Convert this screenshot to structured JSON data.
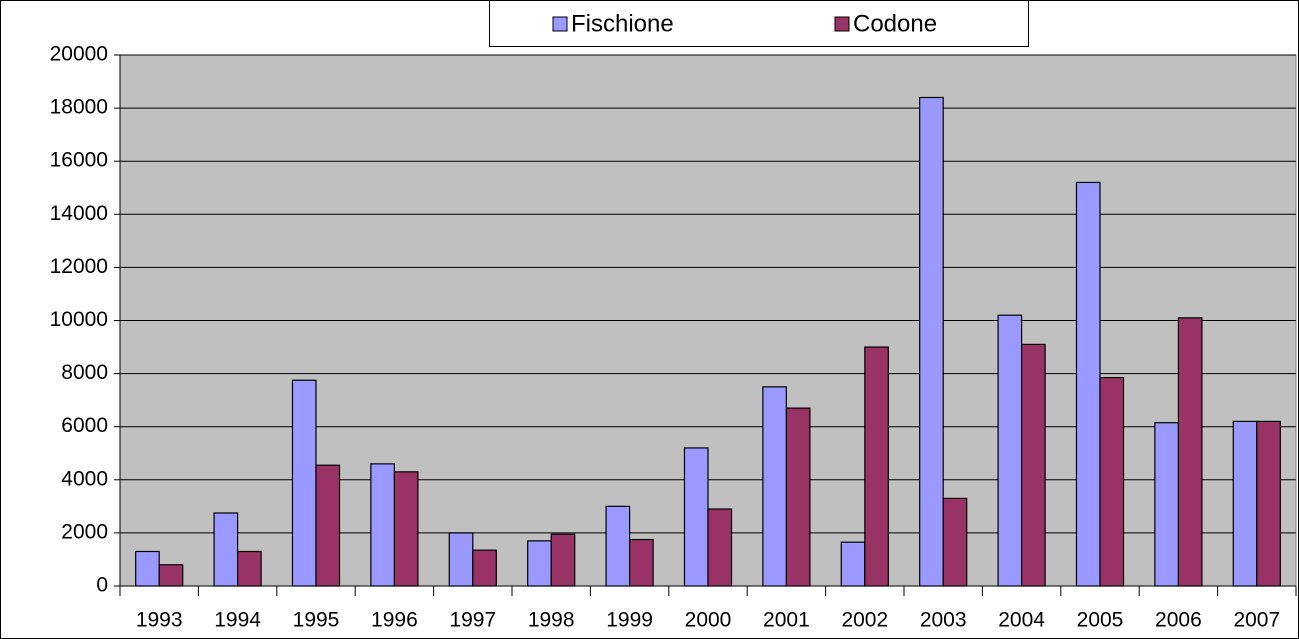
{
  "chart_data": {
    "type": "bar",
    "categories": [
      "1993",
      "1994",
      "1995",
      "1996",
      "1997",
      "1998",
      "1999",
      "2000",
      "2001",
      "2002",
      "2003",
      "2004",
      "2005",
      "2006",
      "2007"
    ],
    "series": [
      {
        "name": "Fischione",
        "color": "#9999ff",
        "values": [
          1300,
          2750,
          7750,
          4600,
          2000,
          1700,
          3000,
          5200,
          7500,
          1650,
          18400,
          10200,
          15200,
          6150,
          6200
        ]
      },
      {
        "name": "Codone",
        "color": "#993366",
        "values": [
          800,
          1300,
          4550,
          4300,
          1350,
          1950,
          1750,
          2900,
          6700,
          9000,
          3300,
          9100,
          7850,
          10100,
          6200
        ]
      }
    ],
    "ylim": [
      0,
      20000
    ],
    "yticks": [
      0,
      2000,
      4000,
      6000,
      8000,
      10000,
      12000,
      14000,
      16000,
      18000,
      20000
    ],
    "grid": true,
    "legend": "top"
  }
}
